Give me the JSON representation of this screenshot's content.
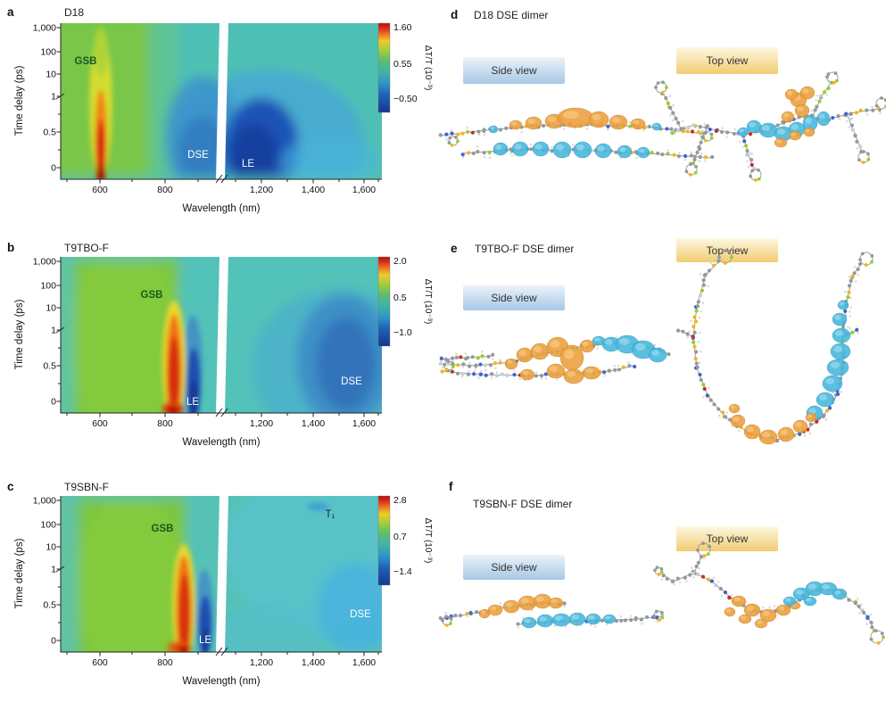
{
  "figure": {
    "charts": [
      {
        "letter": "a",
        "title": "D18",
        "y_label": "Time delay (ps)",
        "x_label": "Wavelength (nm)",
        "y_ticks": [
          "1,000",
          "100",
          "10",
          "1",
          "0.5",
          "0"
        ],
        "x_ticks": [
          "600",
          "800",
          "1,200",
          "1,400",
          "1,600"
        ],
        "colorbar": {
          "label": "ΔT/T (10⁻³)",
          "ticks": [
            "1.60",
            "0.55",
            "−0.50"
          ]
        },
        "labels": {
          "gsb": "GSB",
          "dse": "DSE",
          "le": "LE"
        }
      },
      {
        "letter": "b",
        "title": "T9TBO-F",
        "y_label": "Time delay (ps)",
        "x_label": "Wavelength (nm)",
        "y_ticks": [
          "1,000",
          "100",
          "10",
          "1",
          "0.5",
          "0"
        ],
        "x_ticks": [
          "600",
          "800",
          "1,200",
          "1,400",
          "1,600"
        ],
        "colorbar": {
          "label": "ΔT/T (10⁻³)",
          "ticks": [
            "2.0",
            "0.5",
            "−1.0"
          ]
        },
        "labels": {
          "gsb": "GSB",
          "le": "LE",
          "dse": "DSE"
        }
      },
      {
        "letter": "c",
        "title": "T9SBN-F",
        "y_label": "Time delay (ps)",
        "x_label": "Wavelength (nm)",
        "y_ticks": [
          "1,000",
          "100",
          "10",
          "1",
          "0.5",
          "0"
        ],
        "x_ticks": [
          "600",
          "800",
          "1,200",
          "1,400",
          "1,600"
        ],
        "colorbar": {
          "label": "ΔT/T (10⁻³)",
          "ticks": [
            "2.8",
            "0.7",
            "−1.4"
          ]
        },
        "labels": {
          "gsb": "GSB",
          "le": "LE",
          "dse": "DSE",
          "t1": "T₁"
        }
      }
    ],
    "molecules": [
      {
        "letter": "d",
        "title": "D18 DSE dimer",
        "side": "Side view",
        "top": "Top view"
      },
      {
        "letter": "e",
        "title": "T9TBO-F DSE dimer",
        "side": "Side view",
        "top": "Top view"
      },
      {
        "letter": "f",
        "title": "T9SBN-F DSE dimer",
        "side": "Side view",
        "top": "Top view"
      }
    ]
  },
  "chart_data": [
    {
      "type": "heatmap",
      "panel": "a",
      "sample": "D18",
      "title": "D18",
      "xlabel": "Wavelength (nm)",
      "ylabel": "Time delay (ps)",
      "x_range_nm": [
        490,
        1650
      ],
      "x_axis_break_nm": [
        1060,
        1110
      ],
      "y_ticks_ps": [
        0,
        0.5,
        1,
        10,
        100,
        1000
      ],
      "y_scale": "linear below 1 ps, logarithmic 1-1000 ps",
      "colorbar": {
        "label": "ΔT/T (10⁻³)",
        "tick_values": [
          1.6,
          0.55,
          -0.5
        ]
      },
      "features": [
        {
          "label": "GSB",
          "sign": "positive",
          "center_nm": 600,
          "time_span_ps": [
            0,
            1000
          ],
          "approx_peak": 1.6
        },
        {
          "label": "DSE",
          "sign": "negative",
          "center_nm": 950,
          "time_span_ps": [
            0,
            10
          ],
          "approx_peak": -0.3
        },
        {
          "label": "LE",
          "sign": "negative",
          "center_nm": 1200,
          "time_span_ps": [
            0,
            10
          ],
          "approx_peak": -0.5
        }
      ]
    },
    {
      "type": "heatmap",
      "panel": "b",
      "sample": "T9TBO-F",
      "title": "T9TBO-F",
      "xlabel": "Wavelength (nm)",
      "ylabel": "Time delay (ps)",
      "x_range_nm": [
        490,
        1650
      ],
      "x_axis_break_nm": [
        1060,
        1110
      ],
      "y_ticks_ps": [
        0,
        0.5,
        1,
        10,
        100,
        1000
      ],
      "y_scale": "linear below 1 ps, logarithmic 1-1000 ps",
      "colorbar": {
        "label": "ΔT/T (10⁻³)",
        "tick_values": [
          2.0,
          0.5,
          -1.0
        ]
      },
      "features": [
        {
          "label": "GSB",
          "sign": "positive",
          "center_nm": 830,
          "time_span_ps": [
            0,
            30
          ],
          "approx_peak": 2.0
        },
        {
          "label": "LE",
          "sign": "negative",
          "center_nm": 900,
          "time_span_ps": [
            0,
            8
          ],
          "approx_peak": -1.0
        },
        {
          "label": "DSE",
          "sign": "negative",
          "center_nm": 1520,
          "time_span_ps": [
            0,
            100
          ],
          "approx_peak": -0.7
        }
      ]
    },
    {
      "type": "heatmap",
      "panel": "c",
      "sample": "T9SBN-F",
      "title": "T9SBN-F",
      "xlabel": "Wavelength (nm)",
      "ylabel": "Time delay (ps)",
      "x_range_nm": [
        490,
        1650
      ],
      "x_axis_break_nm": [
        1060,
        1110
      ],
      "y_ticks_ps": [
        0,
        0.5,
        1,
        10,
        100,
        1000
      ],
      "y_scale": "linear below 1 ps, logarithmic 1-1000 ps",
      "colorbar": {
        "label": "ΔT/T (10⁻³)",
        "tick_values": [
          2.8,
          0.7,
          -1.4
        ]
      },
      "features": [
        {
          "label": "GSB",
          "sign": "positive",
          "center_nm": 855,
          "time_span_ps": [
            0,
            30
          ],
          "approx_peak": 2.8
        },
        {
          "label": "LE",
          "sign": "negative",
          "center_nm": 930,
          "time_span_ps": [
            0,
            3
          ],
          "approx_peak": -1.4
        },
        {
          "label": "DSE",
          "sign": "negative",
          "center_nm": 1570,
          "time_span_ps": [
            0,
            5
          ],
          "approx_peak": -0.5
        },
        {
          "label": "T₁",
          "sign": "negative",
          "center_nm": 1430,
          "time_span_ps": [
            100,
            1000
          ],
          "approx_peak": -0.2
        }
      ]
    }
  ]
}
